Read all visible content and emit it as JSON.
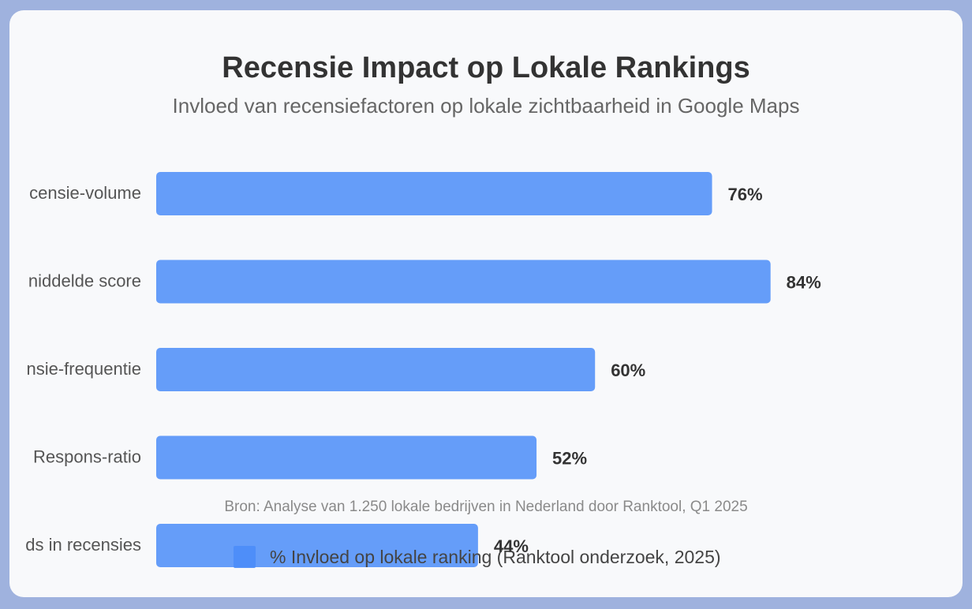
{
  "title": "Recensie Impact op Lokale Rankings",
  "subtitle": "Invloed van recensiefactoren op lokale zichtbaarheid in Google Maps",
  "source_note": "Bron: Analyse van 1.250 lokale bedrijven in Nederland door Ranktool, Q1 2025",
  "legend_label": "% Invloed op lokale ranking (Ranktool onderzoek, 2025)",
  "colors": {
    "bar": "#4b8df8",
    "background": "#9fb2de",
    "card": "#f8f9fb"
  },
  "chart_data": {
    "type": "bar",
    "orientation": "horizontal",
    "categories": [
      "censie-volume",
      "niddelde score",
      "nsie-frequentie",
      "Respons-ratio",
      "ds in recensies"
    ],
    "series": [
      {
        "name": "% Invloed op lokale ranking (Ranktool onderzoek, 2025)",
        "values": [
          76,
          84,
          60,
          52,
          44
        ]
      }
    ],
    "value_labels": [
      "76%",
      "84%",
      "60%",
      "52%",
      "44%"
    ],
    "xlim": [
      0,
      100
    ],
    "grid": false,
    "legend_position": "bottom"
  }
}
